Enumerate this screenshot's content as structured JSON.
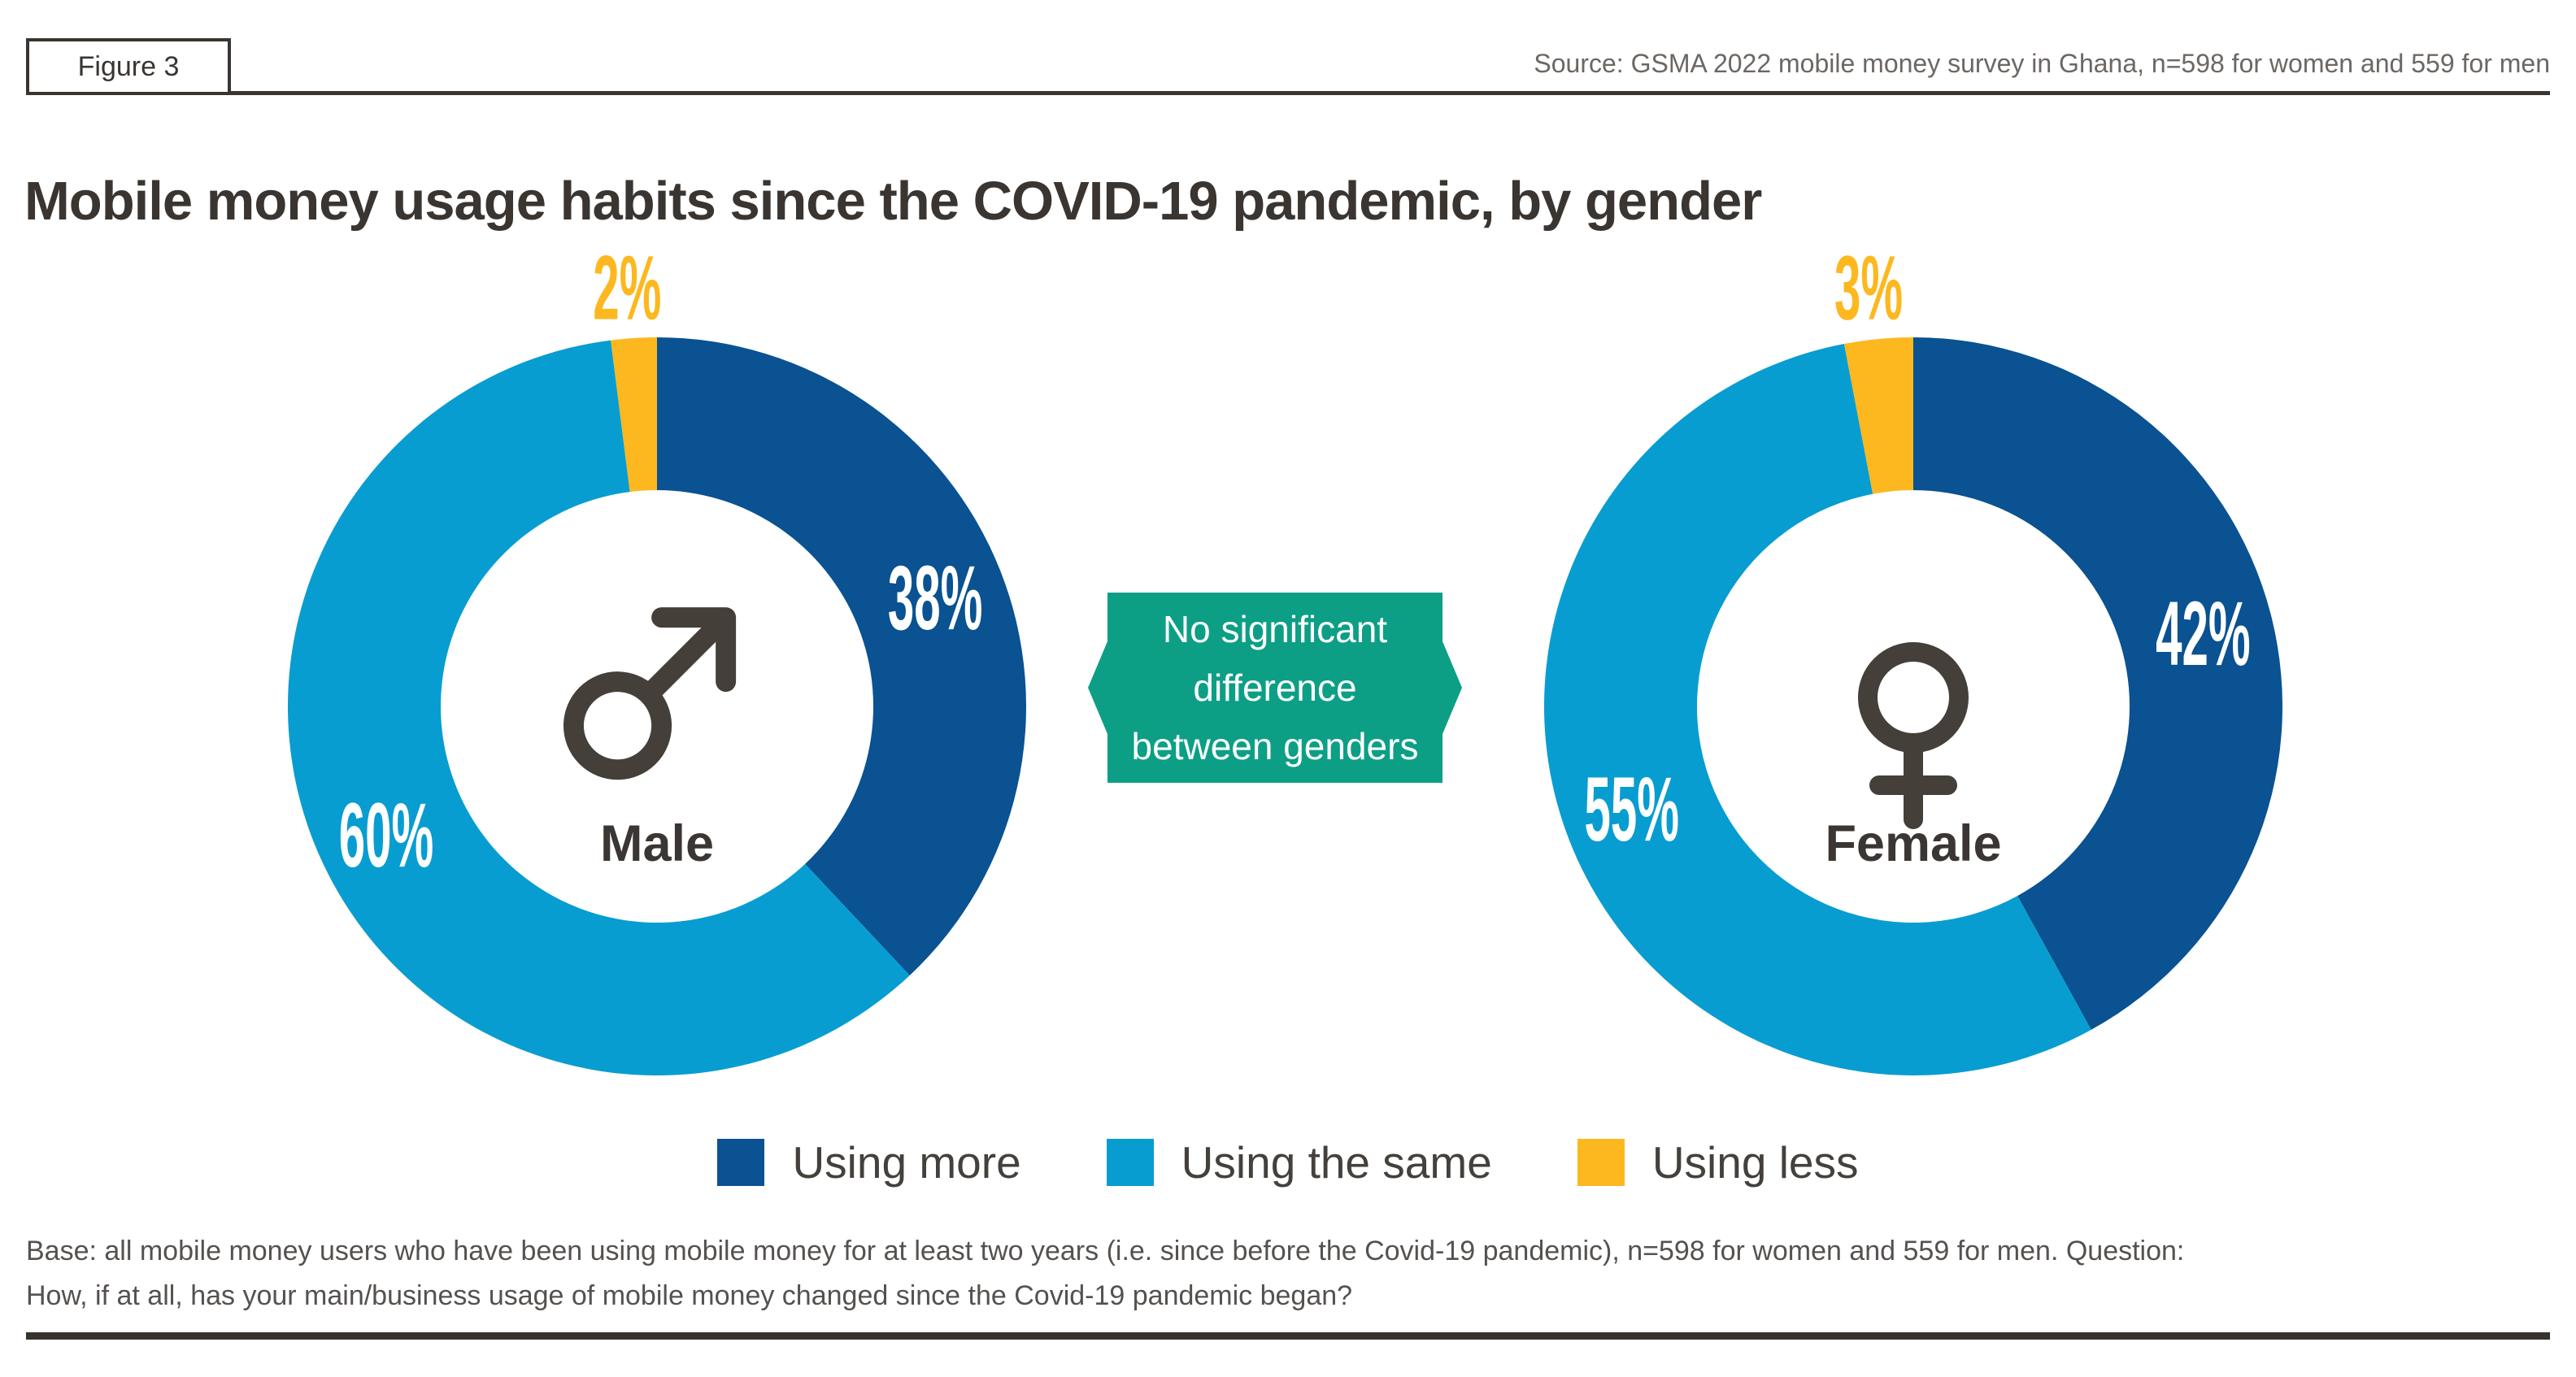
{
  "figure": {
    "label": "Figure 3"
  },
  "header": {
    "source": "Source: GSMA 2022 mobile money survey in Ghana, n=598 for women and 559 for men"
  },
  "title": "Mobile money usage habits since the COVID-19 pandemic, by gender",
  "annotation": {
    "line1": "No significant",
    "line2": "difference",
    "line3": "between genders",
    "color": "#0d9f86"
  },
  "legend": [
    {
      "label": "Using more",
      "color": "#0a5291"
    },
    {
      "label": "Using the same",
      "color": "#089dd1"
    },
    {
      "label": "Using less",
      "color": "#fcb81e"
    }
  ],
  "chart_data": [
    {
      "type": "donut",
      "group": "Male",
      "symbol": "male-icon",
      "categories": [
        "Using more",
        "Using the same",
        "Using less"
      ],
      "values": [
        38,
        60,
        2
      ],
      "unit": "%",
      "labels": [
        "38%",
        "60%",
        "2%"
      ],
      "legend_position": "bottom"
    },
    {
      "type": "donut",
      "group": "Female",
      "symbol": "female-icon",
      "categories": [
        "Using more",
        "Using the same",
        "Using less"
      ],
      "values": [
        42,
        55,
        3
      ],
      "unit": "%",
      "labels": [
        "42%",
        "55%",
        "3%"
      ],
      "legend_position": "bottom"
    }
  ],
  "footer": {
    "base_line1": "Base: all mobile money users who have been using mobile money for at least two years (i.e. since before the Covid-19 pandemic), n=598 for women and 559 for men. Question:",
    "base_line2": "How, if at all, has your main/business usage of mobile money changed since the Covid-19 pandemic began?"
  }
}
